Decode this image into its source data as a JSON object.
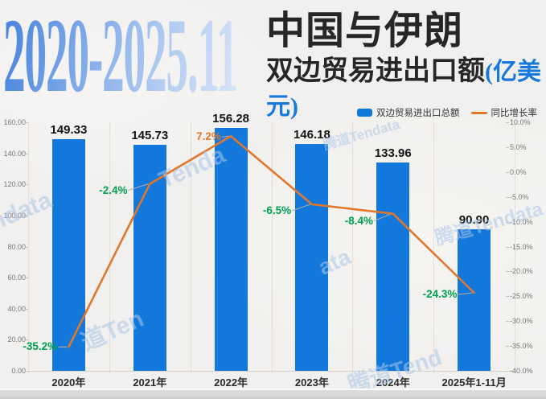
{
  "title": {
    "range": "2020-2025.11",
    "line1": "中国与伊朗",
    "line2": "双边贸易进出口额",
    "unit": "(亿美元)"
  },
  "legend": [
    {
      "label": "双边贸易进出口总额",
      "type": "bar",
      "color": "#1278db"
    },
    {
      "label": "同比增长率",
      "type": "line",
      "color": "#e0772c"
    }
  ],
  "watermarks": [
    "ndata",
    "Tenda",
    "腾道Tendata",
    "腾道Tendata",
    "道Ten",
    "ata",
    "腾道Tend"
  ],
  "colors": {
    "bar": "#1278db",
    "line": "#e0772c",
    "positive_label": "#e0772c",
    "negative_label": "#00a14f",
    "unit_text": "#1878dc"
  },
  "chart_data": {
    "type": "bar",
    "categories": [
      "2020年",
      "2021年",
      "2022年",
      "2023年",
      "2024年",
      "2025年1-11月"
    ],
    "series": [
      {
        "name": "双边贸易进出口总额",
        "type": "bar",
        "axis": "left",
        "color": "#1278db",
        "values": [
          149.33,
          145.73,
          156.28,
          146.18,
          133.96,
          90.9
        ],
        "value_labels": [
          "149.33",
          "145.73",
          "156.28",
          "146.18",
          "133.96",
          "90.90"
        ]
      },
      {
        "name": "同比增长率",
        "type": "line",
        "axis": "right",
        "color": "#e0772c",
        "values": [
          -35.2,
          -2.4,
          7.2,
          -6.5,
          -8.4,
          -24.3
        ],
        "value_labels": [
          "-35.2%",
          "-2.4%",
          "7.2%",
          "-6.5%",
          "-8.4%",
          "-24.3%"
        ],
        "label_colors": [
          "#00a14f",
          "#00a14f",
          "#e0772c",
          "#00a14f",
          "#00a14f",
          "#00a14f"
        ]
      }
    ],
    "left_axis": {
      "min": 0,
      "max": 160,
      "step": 20,
      "tick_labels": [
        "160.00",
        "140.00",
        "120.00",
        "100.00",
        "80.00",
        "60.00",
        "40.00",
        "20.00",
        "0.00"
      ]
    },
    "right_axis": {
      "min": -40,
      "max": 10,
      "step": 5,
      "tick_labels": [
        "10.0%",
        "5.0%",
        "0.0%",
        "-5.0%",
        "-10.0%",
        "-15.0%",
        "-20.0%",
        "-25.0%",
        "-30.0%",
        "-35.0%",
        "-40.0%"
      ]
    },
    "grid": "vertical-separators",
    "legend_position": "top-right",
    "title": "2020-2025.11 中国与伊朗双边贸易进出口额(亿美元)"
  }
}
